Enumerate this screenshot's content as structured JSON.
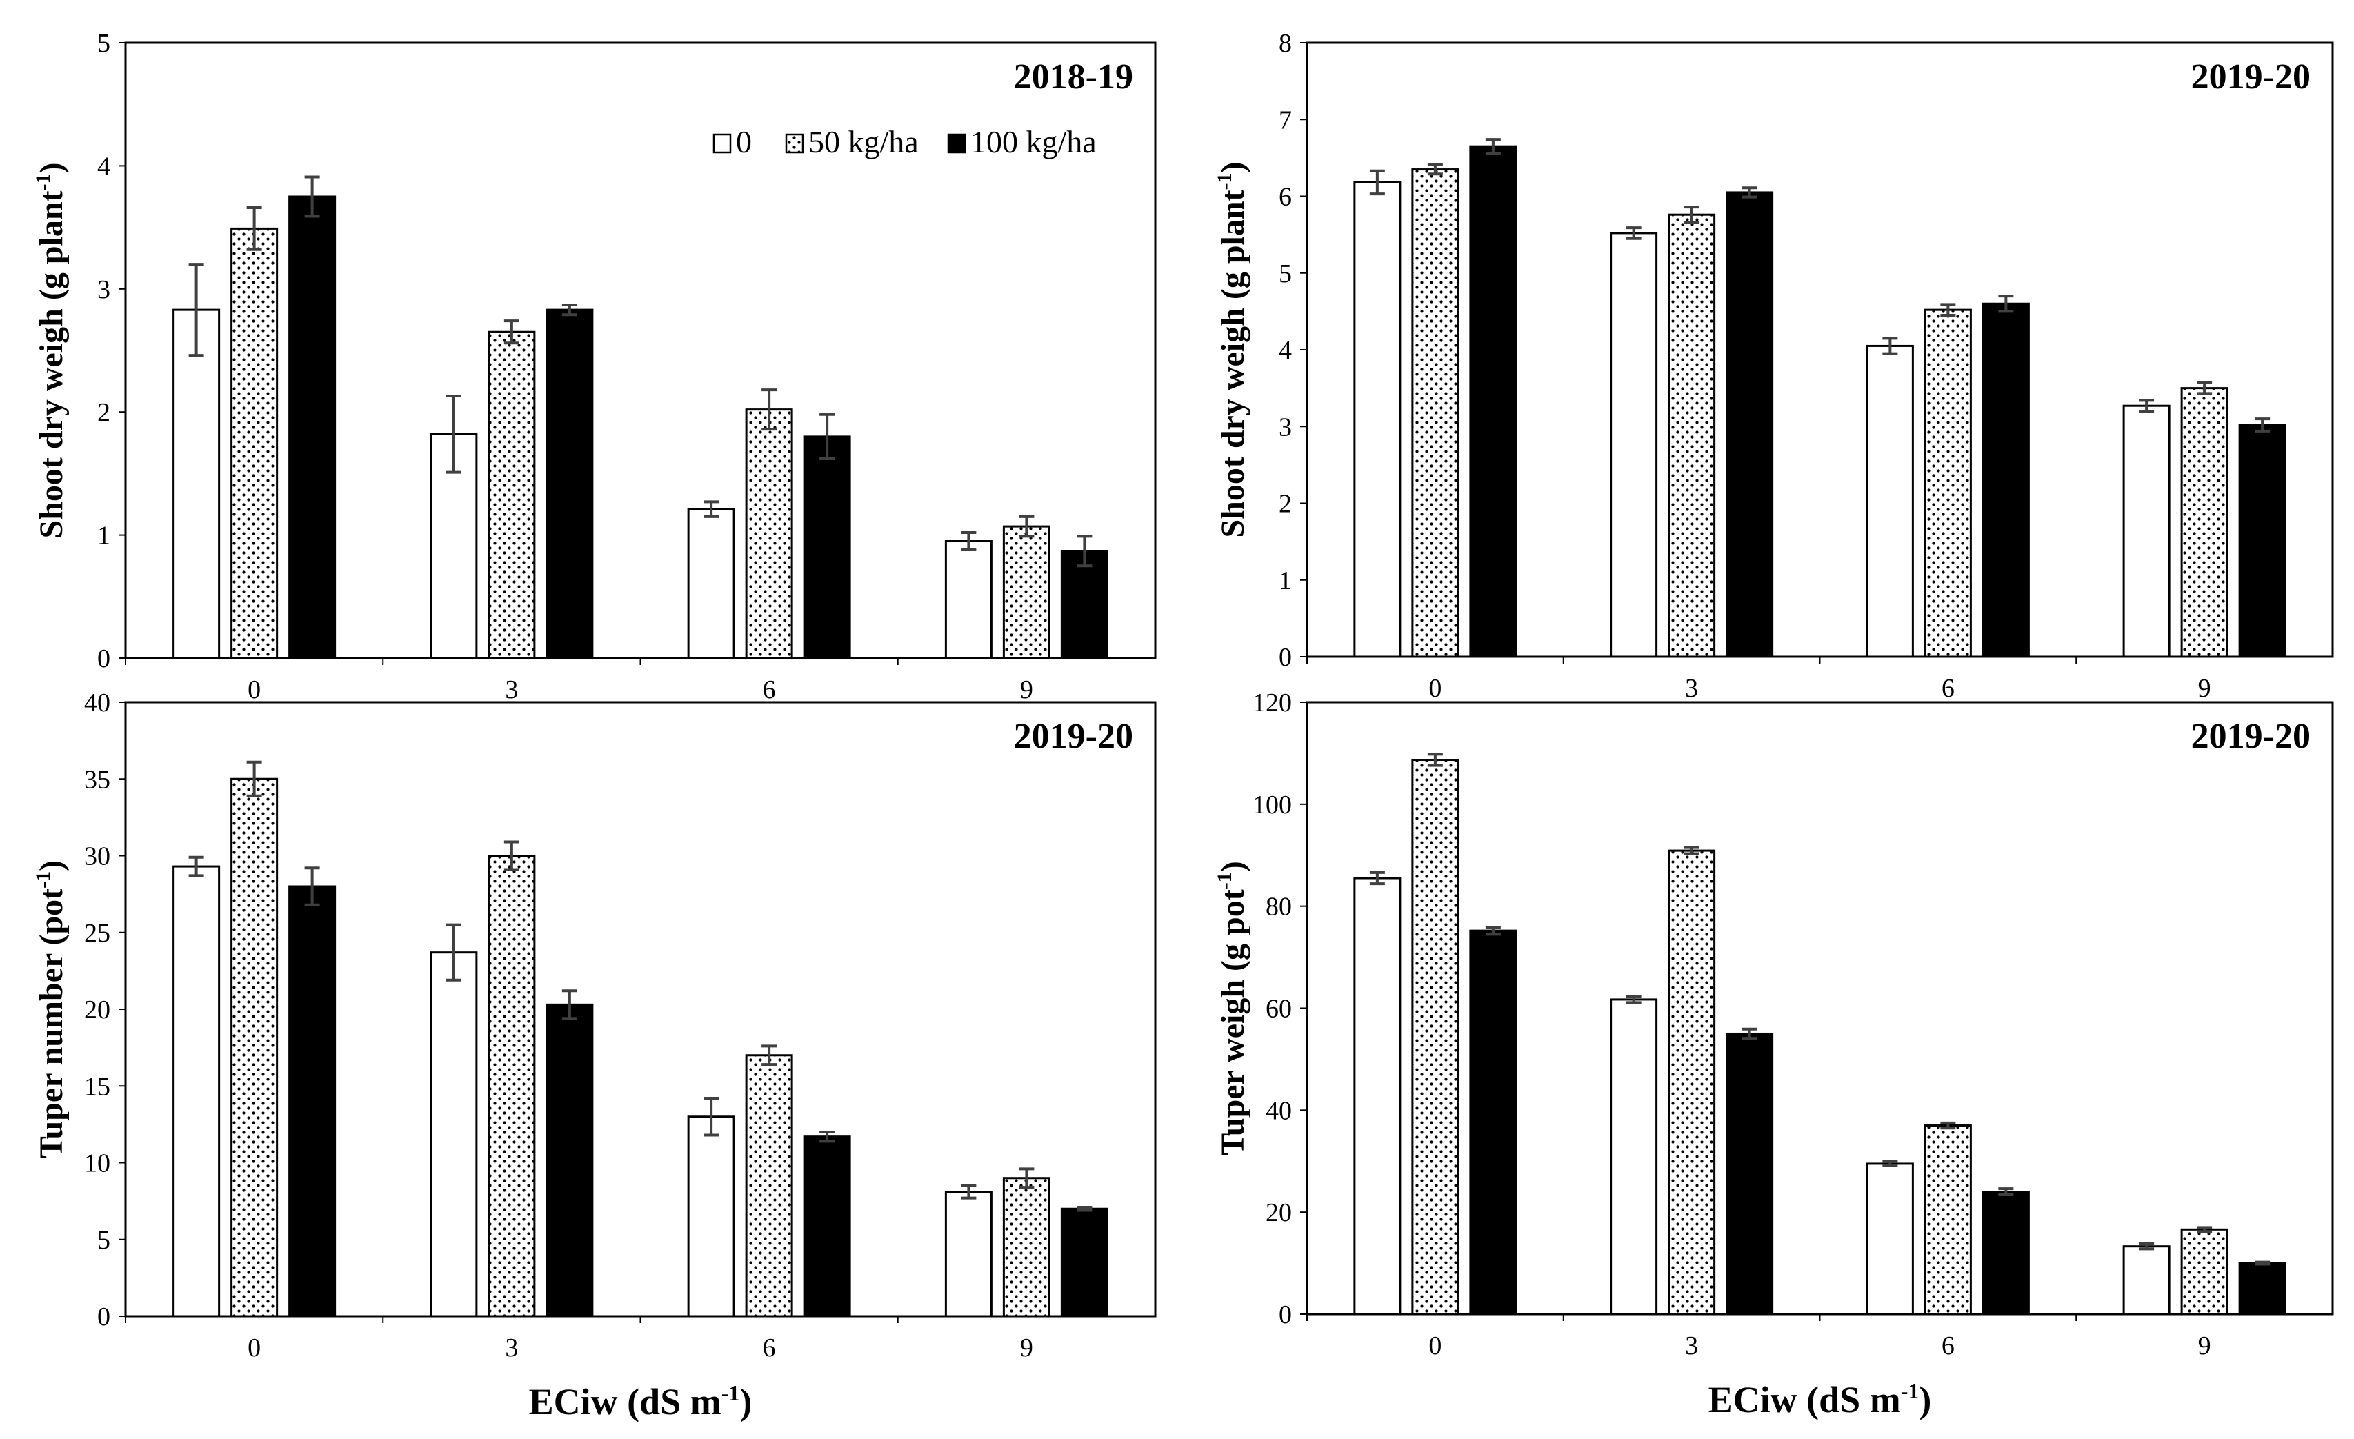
{
  "figure": {
    "legend": {
      "entries": [
        "0",
        "50 kg/ha",
        "100 kg/ha"
      ],
      "fills": [
        "white",
        "dotted",
        "black"
      ]
    },
    "colors": {
      "bar_black": "#000000",
      "bar_white": "#ffffff",
      "dot": "#000000",
      "error_bar": "#404040"
    }
  },
  "chart_data": [
    {
      "type": "bar",
      "panel": "top-left",
      "season_label": "2018-19",
      "ylabel": "Shoot dry weigh (g plant",
      "ylabel_sup": "-1",
      "ylabel_close": ")",
      "xlabel": "",
      "categories": [
        "0",
        "3",
        "6",
        "9"
      ],
      "ylim": [
        0,
        5
      ],
      "yticks": [
        "0",
        "1",
        "2",
        "3",
        "4",
        "5"
      ],
      "show_legend": true,
      "series": [
        {
          "name": "0",
          "values": [
            2.83,
            1.82,
            1.21,
            0.95
          ],
          "errors": [
            0.37,
            0.31,
            0.06,
            0.07
          ]
        },
        {
          "name": "50 kg/ha",
          "values": [
            3.49,
            2.65,
            2.02,
            1.07
          ],
          "errors": [
            0.17,
            0.09,
            0.16,
            0.08
          ]
        },
        {
          "name": "100 kg/ha",
          "values": [
            3.75,
            2.83,
            1.8,
            0.87
          ],
          "errors": [
            0.16,
            0.04,
            0.18,
            0.12
          ]
        }
      ]
    },
    {
      "type": "bar",
      "panel": "top-right",
      "season_label": "2019-20",
      "ylabel": "Shoot dry weigh (g plant",
      "ylabel_sup": "-1",
      "ylabel_close": ")",
      "xlabel": "",
      "categories": [
        "0",
        "3",
        "6",
        "9"
      ],
      "ylim": [
        0,
        8
      ],
      "yticks": [
        "0",
        "1",
        "2",
        "3",
        "4",
        "5",
        "6",
        "7",
        "8"
      ],
      "show_legend": false,
      "series": [
        {
          "name": "0",
          "values": [
            6.18,
            5.52,
            4.05,
            3.27
          ],
          "errors": [
            0.15,
            0.07,
            0.1,
            0.07
          ]
        },
        {
          "name": "50 kg/ha",
          "values": [
            6.35,
            5.76,
            4.52,
            3.5
          ],
          "errors": [
            0.06,
            0.1,
            0.07,
            0.07
          ]
        },
        {
          "name": "100 kg/ha",
          "values": [
            6.65,
            6.05,
            4.6,
            3.02
          ],
          "errors": [
            0.09,
            0.06,
            0.1,
            0.08
          ]
        }
      ]
    },
    {
      "type": "bar",
      "panel": "bottom-left",
      "season_label": "2019-20",
      "ylabel": "Tuper number (pot",
      "ylabel_sup": "-1",
      "ylabel_close": ")",
      "xlabel": "ECiw (dS m",
      "xlabel_sup": "-1",
      "xlabel_close": ")",
      "categories": [
        "0",
        "3",
        "6",
        "9"
      ],
      "ylim": [
        0,
        40
      ],
      "yticks": [
        "0",
        "5",
        "10",
        "15",
        "20",
        "25",
        "30",
        "35",
        "40"
      ],
      "show_legend": false,
      "series": [
        {
          "name": "0",
          "values": [
            29.3,
            23.7,
            13.0,
            8.1
          ],
          "errors": [
            0.6,
            1.8,
            1.2,
            0.4
          ]
        },
        {
          "name": "50 kg/ha",
          "values": [
            35.0,
            30.0,
            17.0,
            9.0
          ],
          "errors": [
            1.1,
            0.9,
            0.6,
            0.6
          ]
        },
        {
          "name": "100 kg/ha",
          "values": [
            28.0,
            20.3,
            11.7,
            7.0
          ],
          "errors": [
            1.2,
            0.9,
            0.3,
            0.1
          ]
        }
      ]
    },
    {
      "type": "bar",
      "panel": "bottom-right",
      "season_label": "2019-20",
      "ylabel": "Tuper weigh (g pot",
      "ylabel_sup": "-1",
      "ylabel_close": ")",
      "xlabel": "ECiw (dS m",
      "xlabel_sup": "-1",
      "xlabel_close": ")",
      "categories": [
        "0",
        "3",
        "6",
        "9"
      ],
      "ylim": [
        0,
        120
      ],
      "yticks": [
        "0",
        "20",
        "40",
        "60",
        "80",
        "100",
        "120"
      ],
      "show_legend": false,
      "series": [
        {
          "name": "0",
          "values": [
            85.5,
            61.7,
            29.5,
            13.3
          ],
          "errors": [
            1.1,
            0.6,
            0.4,
            0.5
          ]
        },
        {
          "name": "50 kg/ha",
          "values": [
            108.7,
            90.9,
            37.0,
            16.6
          ],
          "errors": [
            1.1,
            0.6,
            0.5,
            0.4
          ]
        },
        {
          "name": "100 kg/ha",
          "values": [
            75.2,
            55.0,
            24.0,
            10.0
          ],
          "errors": [
            0.7,
            0.9,
            0.6,
            0.2
          ]
        }
      ]
    }
  ]
}
